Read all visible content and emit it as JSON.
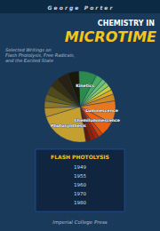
{
  "chart_data": {
    "type": "pie",
    "title": "MICROTIME",
    "subtitle": "Selected Writings on\nFlash Photolysis, Free Radicals,\nand the Excited State",
    "annotations": [
      "G e o r g e   P o r t e r",
      "CHEMISTRY IN",
      "FLASH PHOTOLYSIS",
      "1949",
      "1955",
      "1960",
      "1970",
      "1980",
      "Imperial College Press"
    ],
    "categories": [
      "Kinetics",
      null,
      null,
      null,
      null,
      null,
      null,
      "Luminescence",
      "Chemiluminescence",
      null,
      null,
      null,
      null,
      "Photosynthesis",
      null,
      null,
      null,
      null,
      null,
      null,
      null
    ],
    "values": [
      8,
      3,
      2,
      2,
      2,
      2,
      3,
      10,
      6,
      2,
      2,
      2,
      2,
      22,
      4,
      3,
      3,
      4,
      4,
      5,
      5
    ],
    "colors": [
      "#2d8a4e",
      "#4aaa60",
      "#6abf7a",
      "#88cc66",
      "#cccc44",
      "#ddaa22",
      "#cc8822",
      "#e87820",
      "#e86010",
      "#cc4410",
      "#aa2208",
      "#882208",
      "#661a06",
      "#c4a030",
      "#b89030",
      "#8c7828",
      "#6a6020",
      "#504a18",
      "#382e10",
      "#282010",
      "#1c1808"
    ]
  }
}
